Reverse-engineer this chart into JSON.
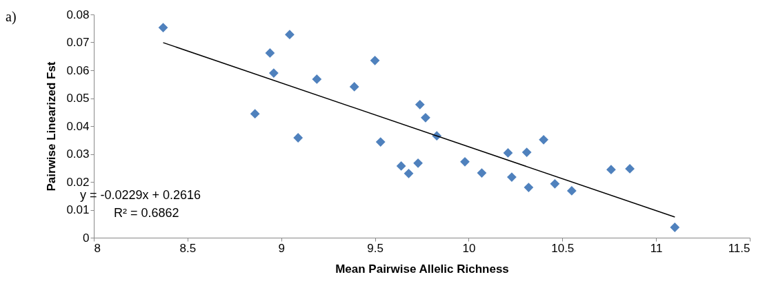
{
  "chart_data": {
    "type": "scatter",
    "xlabel": "Mean Pairwise Allelic Richness",
    "ylabel": "Pairwise Linearized Fst",
    "annotations": [
      "a)",
      "y = -0.0229x + 0.2616",
      "R² = 0.6862"
    ],
    "xlim": [
      8,
      11.5
    ],
    "xticks": [
      8,
      8.5,
      9,
      9.5,
      10,
      10.5,
      11,
      11.5
    ],
    "ylim": [
      0,
      0.08
    ],
    "yticks": [
      0,
      0.01,
      0.02,
      0.03,
      0.04,
      0.05,
      0.06,
      0.07,
      0.08
    ],
    "grid": false,
    "marker": "diamond",
    "series": [
      {
        "color": "#4f81bd",
        "x": [
          8.37,
          9.045,
          8.94,
          8.96,
          9.19,
          9.5,
          9.39,
          8.86,
          9.09,
          9.74,
          9.77,
          9.83,
          9.53,
          9.64,
          9.73,
          9.68,
          9.98,
          10.07,
          10.21,
          10.31,
          10.4,
          10.23,
          10.32,
          10.46,
          10.55,
          10.76,
          10.86,
          11.1
        ],
        "values": [
          0.0753,
          0.0728,
          0.0662,
          0.059,
          0.0568,
          0.0635,
          0.0541,
          0.0444,
          0.0358,
          0.0477,
          0.043,
          0.0365,
          0.0343,
          0.0257,
          0.0267,
          0.023,
          0.0272,
          0.0232,
          0.0304,
          0.0306,
          0.0351,
          0.0217,
          0.018,
          0.0193,
          0.0168,
          0.0244,
          0.0247,
          0.0037
        ]
      },
      {
        "type": "line",
        "color": "#000000",
        "line_style": "solid",
        "marker": "none",
        "x": [
          8.37,
          11.1
        ],
        "values": [
          0.0699,
          0.0074
        ]
      }
    ]
  }
}
